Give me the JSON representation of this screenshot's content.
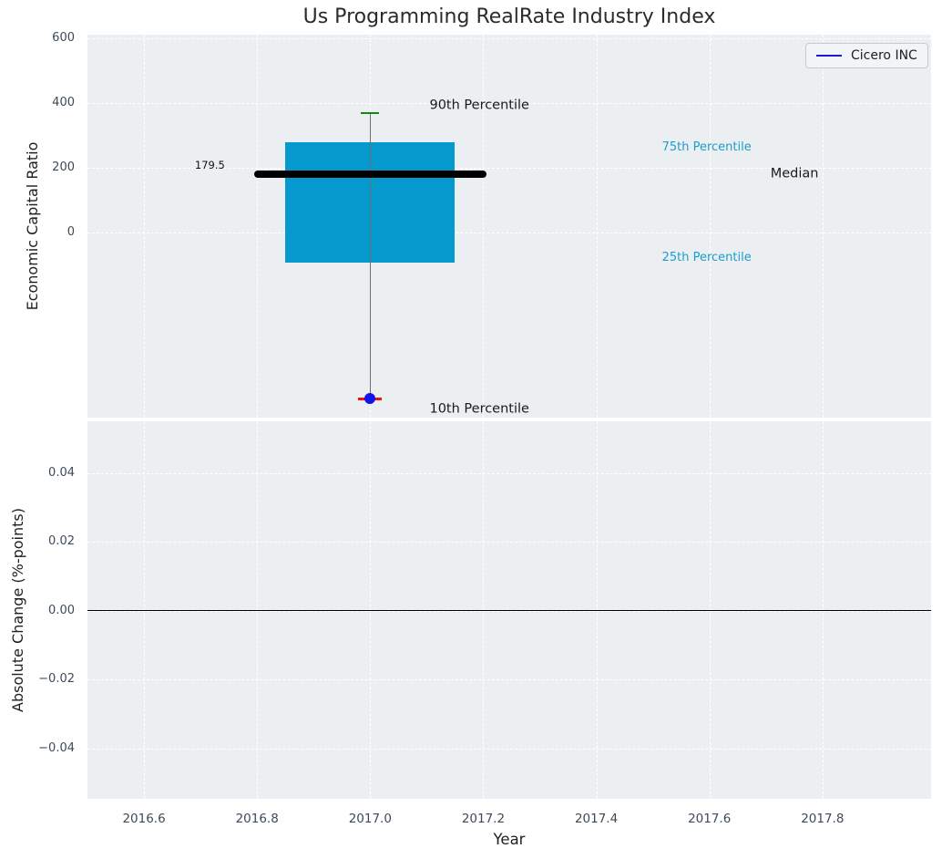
{
  "figure": {
    "background": "#ffffff",
    "axes_background": "#eceff1",
    "grid_color": "#ffffff",
    "tick_color": "#3d4a5c"
  },
  "chart_data": [
    {
      "type": "boxplot",
      "title": "Us Programming RealRate Industry Index",
      "ylabel": "Economic Capital Ratio",
      "xlim": [
        2016.5,
        2017.992
      ],
      "ylim": [
        -568,
        610
      ],
      "yticks": {
        "values": [
          600,
          400,
          200,
          0
        ],
        "labels": [
          "600",
          "400",
          "200",
          "0"
        ]
      },
      "grid": true,
      "legend": {
        "position": "upper-right",
        "entries": [
          {
            "label": "Cicero INC",
            "color": "#1b1bd6",
            "marker": "line"
          }
        ]
      },
      "box": {
        "x_center": 2017.0,
        "box_x_range": [
          2016.85,
          2017.15
        ],
        "median_x_range": [
          2016.795,
          2017.205
        ],
        "values": {
          "p10": -510,
          "p25": -92,
          "median": 179.5,
          "p75": 280,
          "p90": 369
        },
        "colors": {
          "box": "#0599ce",
          "median": "#000000",
          "whisker": "#6f6f6f",
          "p90_cap": "#0e8c10",
          "p10_cap": "#ee1111",
          "company_dot": "#1414e8"
        }
      },
      "company_point": {
        "label": "Cicero INC",
        "x": 2017.0,
        "value": -510
      },
      "annotations": [
        {
          "id": "median-value",
          "text": "179.5",
          "color": "#111111",
          "x": 2016.743,
          "y": 206,
          "align": "right",
          "style": "value"
        },
        {
          "id": "90th-percentile",
          "text": "90th Percentile",
          "color": "#1a1a1a",
          "x": 2017.105,
          "y": 390,
          "align": "left",
          "style": "black"
        },
        {
          "id": "10th-percentile",
          "text": "10th Percentile",
          "color": "#1a1a1a",
          "x": 2017.105,
          "y": -542,
          "align": "left",
          "style": "black"
        },
        {
          "id": "median",
          "text": "Median",
          "color": "#1a1a1a",
          "x": 2017.708,
          "y": 179.5,
          "align": "left",
          "style": "black"
        },
        {
          "id": "75th-percentile",
          "text": "75th Percentile",
          "color": "#1d9ccd",
          "x": 2017.516,
          "y": 262,
          "align": "left",
          "style": "cyan"
        },
        {
          "id": "25th-percentile",
          "text": "25th Percentile",
          "color": "#1d9ccd",
          "x": 2017.516,
          "y": -77,
          "align": "left",
          "style": "cyan"
        }
      ]
    },
    {
      "type": "line",
      "ylabel": "Absolute Change (%-points)",
      "xlabel": "Year",
      "xlim": [
        2016.5,
        2017.992
      ],
      "ylim": [
        -0.0547,
        0.055
      ],
      "yticks": {
        "values": [
          0.04,
          0.02,
          0.0,
          -0.02,
          -0.04
        ],
        "labels": [
          "0.04",
          "0.02",
          "0.00",
          "−0.02",
          "−0.04"
        ]
      },
      "xticks": {
        "values": [
          2016.6,
          2016.8,
          2017.0,
          2017.2,
          2017.4,
          2017.6,
          2017.8
        ],
        "labels": [
          "2016.6",
          "2016.8",
          "2017.0",
          "2017.2",
          "2017.4",
          "2017.6",
          "2017.8"
        ]
      },
      "grid": true,
      "zero_line": {
        "y": 0.0,
        "color": "#000000"
      },
      "series": []
    }
  ]
}
